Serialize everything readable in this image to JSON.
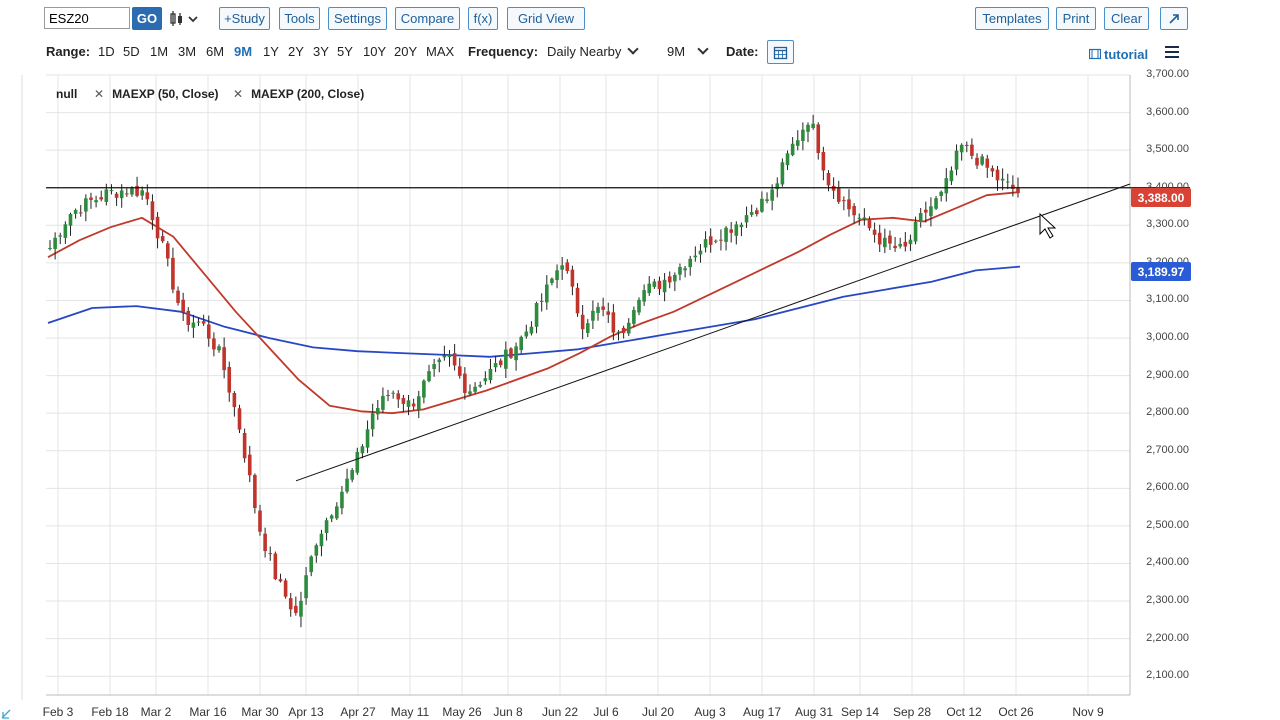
{
  "toolbar": {
    "symbol": "ESZ20",
    "go_label": "GO",
    "study_label": "+Study",
    "tools_label": "Tools",
    "settings_label": "Settings",
    "compare_label": "Compare",
    "fx_label": "f(x)",
    "grid_view_label": "Grid View",
    "templates_label": "Templates",
    "print_label": "Print",
    "clear_label": "Clear"
  },
  "range": {
    "label": "Range:",
    "items": [
      "1D",
      "5D",
      "1M",
      "3M",
      "6M",
      "9M",
      "1Y",
      "2Y",
      "3Y",
      "5Y",
      "10Y",
      "20Y",
      "MAX"
    ],
    "active": "9M"
  },
  "frequency": {
    "label": "Frequency:",
    "value": "Daily Nearby"
  },
  "period": {
    "value": "9M"
  },
  "date": {
    "label": "Date:"
  },
  "tutorial_label": "tutorial",
  "legend": [
    {
      "label": "null"
    },
    {
      "label": "MAEXP (50, Close)"
    },
    {
      "label": "MAEXP (200, Close)"
    }
  ],
  "price_tags": {
    "last": {
      "label": "3,388.00",
      "color": "#d94336"
    },
    "ma200": {
      "label": "3,189.97",
      "color": "#2a5cd6"
    }
  },
  "colors": {
    "up": "#2e8b3e",
    "down": "#c0342b",
    "ma50": "#c0392b",
    "ma200": "#2747c4",
    "accent": "#1f6fb5"
  },
  "chart_data": {
    "type": "candlestick",
    "y_axis": {
      "min": 2050,
      "max": 3700,
      "ticks": [
        "3,700.00",
        "3,600.00",
        "3,500.00",
        "3,400.00",
        "3,300.00",
        "3,200.00",
        "3,100.00",
        "3,000.00",
        "2,900.00",
        "2,800.00",
        "2,700.00",
        "2,600.00",
        "2,500.00",
        "2,400.00",
        "2,300.00",
        "2,200.00",
        "2,100.00"
      ]
    },
    "x_axis": {
      "ticks": [
        "Feb 3",
        "Feb 18",
        "Mar 2",
        "Mar 16",
        "Mar 30",
        "Apr 13",
        "Apr 27",
        "May 11",
        "May 26",
        "Jun 8",
        "Jun 22",
        "Jul 6",
        "Jul 20",
        "Aug 3",
        "Aug 17",
        "Aug 31",
        "Sep 14",
        "Sep 28",
        "Oct 12",
        "Oct 26",
        "Nov 9"
      ]
    },
    "anchor_closes": [
      3240,
      3330,
      3360,
      3385,
      3395,
      3390,
      3230,
      3050,
      3040,
      2950,
      2760,
      2500,
      2350,
      2260,
      2460,
      2560,
      2650,
      2800,
      2860,
      2820,
      2900,
      2950,
      2860,
      2900,
      2950,
      3010,
      3110,
      3210,
      3040,
      3080,
      3000,
      3120,
      3140,
      3180,
      3230,
      3270,
      3300,
      3340,
      3380,
      3500,
      3590,
      3420,
      3350,
      3300,
      3250,
      3230,
      3330,
      3380,
      3510,
      3470,
      3420,
      3388
    ],
    "horizontal_line": 3400,
    "trendline": {
      "from": {
        "x": "Apr 1",
        "y": 2620
      },
      "to": {
        "x": "Nov 9",
        "y": 3410
      }
    },
    "series": [
      {
        "name": "MAEXP (50, Close)",
        "values": [
          3215,
          3260,
          3295,
          3320,
          3270,
          3170,
          3070,
          2980,
          2890,
          2820,
          2805,
          2800,
          2810,
          2835,
          2860,
          2890,
          2920,
          2960,
          3005,
          3040,
          3070,
          3110,
          3150,
          3190,
          3230,
          3275,
          3315,
          3320,
          3310,
          3345,
          3380,
          3388
        ]
      },
      {
        "name": "MAEXP (200, Close)",
        "values": [
          3040,
          3080,
          3085,
          3070,
          3030,
          3000,
          2975,
          2965,
          2960,
          2955,
          2950,
          2960,
          2970,
          2990,
          3010,
          3030,
          3050,
          3080,
          3110,
          3130,
          3150,
          3180,
          3190
        ]
      }
    ]
  }
}
